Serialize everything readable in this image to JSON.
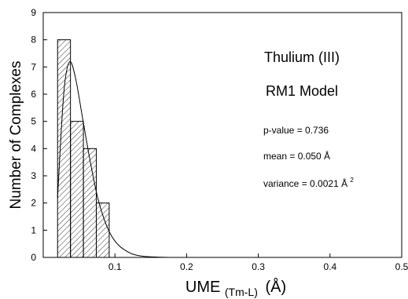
{
  "chart_data": {
    "type": "bar",
    "title": "",
    "xlabel": "UME",
    "xlabel_subscript": "(Tm-L)",
    "xlabel_unit": "(Å)",
    "ylabel": "Number of Complexes",
    "xlim": [
      0,
      0.5
    ],
    "ylim": [
      0,
      9
    ],
    "x_ticks": [
      "0.1",
      "0.2",
      "0.3",
      "0.4",
      "0.5"
    ],
    "x_tick_values": [
      0.1,
      0.2,
      0.3,
      0.4,
      0.5
    ],
    "y_ticks": [
      "0",
      "1",
      "2",
      "3",
      "4",
      "5",
      "6",
      "7",
      "8",
      "9"
    ],
    "y_tick_values": [
      0,
      1,
      2,
      3,
      4,
      5,
      6,
      7,
      8,
      9
    ],
    "bins": [
      {
        "from": 0.02,
        "to": 0.038,
        "count": 8
      },
      {
        "from": 0.038,
        "to": 0.056,
        "count": 5
      },
      {
        "from": 0.056,
        "to": 0.074,
        "count": 4
      },
      {
        "from": 0.074,
        "to": 0.092,
        "count": 2
      }
    ],
    "fitted_curve": {
      "type": "lognormal-like",
      "peak_x": 0.037,
      "peak_y": 7.2,
      "points": [
        [
          0.02,
          2.2
        ],
        [
          0.025,
          4.6
        ],
        [
          0.03,
          6.4
        ],
        [
          0.037,
          7.2
        ],
        [
          0.045,
          6.6
        ],
        [
          0.055,
          5.1
        ],
        [
          0.065,
          3.6
        ],
        [
          0.075,
          2.3
        ],
        [
          0.085,
          1.4
        ],
        [
          0.095,
          0.8
        ],
        [
          0.105,
          0.45
        ],
        [
          0.115,
          0.25
        ],
        [
          0.125,
          0.12
        ],
        [
          0.14,
          0.04
        ],
        [
          0.16,
          0.01
        ],
        [
          0.18,
          0.0
        ]
      ]
    },
    "grid": false,
    "bar_fill": "hatched",
    "annotations": {
      "title_line1": "Thulium (III)",
      "title_line2": "RM1 Model",
      "p_value": "p-value = 0.736",
      "mean": "mean = 0.050 Å",
      "variance_text": "variance = 0.0021 Å",
      "variance_superscript": "2"
    }
  }
}
